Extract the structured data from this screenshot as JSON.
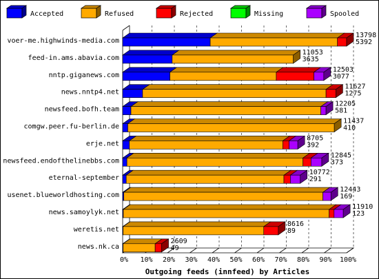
{
  "chart_data": {
    "type": "bar",
    "orientation": "horizontal",
    "stacked": true,
    "percent_scale": true,
    "title": "Outgoing feeds (innfeed) by Articles",
    "xlabel": "",
    "ylabel": "",
    "xlim": [
      0,
      100
    ],
    "x_ticks": [
      "0%",
      "10%",
      "20%",
      "30%",
      "40%",
      "50%",
      "60%",
      "70%",
      "80%",
      "90%",
      "100%"
    ],
    "legend_position": "top",
    "categories": [
      "voer-me.highwinds-media.com",
      "feed-in.ams.abavia.com",
      "nntp.giganews.com",
      "news.nntp4.net",
      "newsfeed.bofh.team",
      "comgw.peer.fu-berlin.de",
      "erje.net",
      "newsfeed.endofthelinebbs.com",
      "eternal-september",
      "usenet.blueworldhosting.com",
      "news.samoylyk.net",
      "weretis.net",
      "news.nk.ca"
    ],
    "labels_total": [
      "13798",
      "11053",
      "12503",
      "11627",
      "12205",
      "11437",
      "8705",
      "12845",
      "10772",
      "12443",
      "11910",
      "8616",
      "2609"
    ],
    "labels_second": [
      "5392",
      "3635",
      "3077",
      "1275",
      "581",
      "410",
      "392",
      "373",
      "291",
      "169",
      "123",
      "89",
      "49"
    ],
    "series": [
      {
        "name": "Accepted",
        "color": "#0000ff",
        "values": [
          39.1,
          22.1,
          21.1,
          8.9,
          3.7,
          2.3,
          3.0,
          1.9,
          1.6,
          0.5,
          0.3,
          0.2,
          0.2
        ]
      },
      {
        "name": "Refused",
        "color": "#ffaa00",
        "values": [
          56.8,
          54.1,
          47.5,
          81.9,
          84.8,
          92.2,
          68.5,
          78.6,
          70.4,
          88.9,
          91.9,
          62.8,
          14.3
        ]
      },
      {
        "name": "Rejected",
        "color": "#ff0000",
        "values": [
          4.1,
          0,
          16.8,
          4.4,
          0,
          0,
          2.8,
          3.6,
          2.9,
          0,
          2.2,
          6.5,
          2.9
        ]
      },
      {
        "name": "Missing",
        "color": "#00ff00",
        "values": [
          0,
          0,
          0,
          0,
          0,
          0,
          0,
          0,
          0,
          0,
          0,
          0,
          0
        ]
      },
      {
        "name": "Spooled",
        "color": "#aa00ff",
        "values": [
          0,
          0,
          4.4,
          0,
          2.3,
          0,
          3.9,
          4.8,
          4.4,
          3.6,
          4.1,
          0,
          0
        ]
      }
    ]
  }
}
